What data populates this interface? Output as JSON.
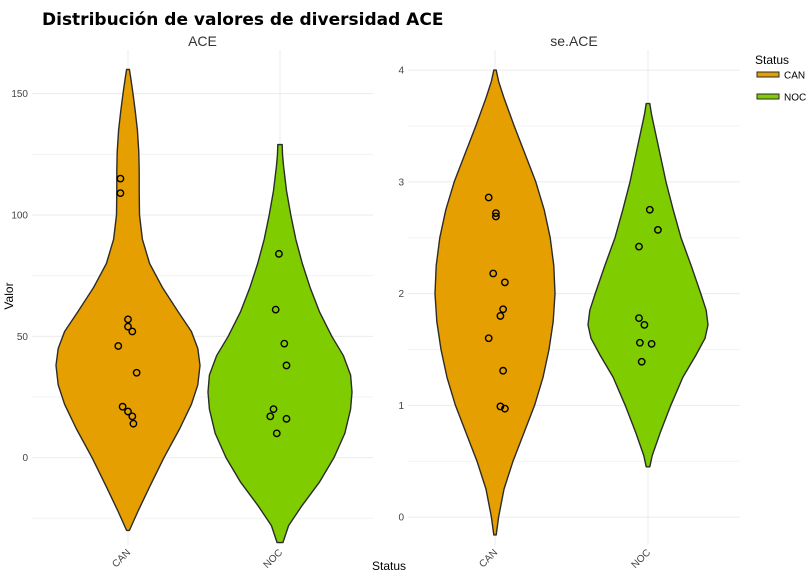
{
  "chart_data": {
    "type": "violin",
    "title": "Distribución de valores de diversidad ACE",
    "xlabel": "Status",
    "ylabel": "Valor",
    "legend": {
      "title": "Status",
      "placement": "right",
      "entries": [
        {
          "label": "CAN",
          "color": "#E69F00"
        },
        {
          "label": "NOC",
          "color": "#7FCD00"
        }
      ]
    },
    "categories": [
      "CAN",
      "NOC"
    ],
    "facets": [
      {
        "title": "ACE",
        "ylim": [
          -36,
          168
        ],
        "yticks": [
          0,
          50,
          100,
          150
        ],
        "violins": [
          {
            "category": "CAN",
            "ymin": -30,
            "ymax": 160,
            "profile": [
              [
                -30,
                0.02
              ],
              [
                -22,
                0.14
              ],
              [
                -12,
                0.3
              ],
              [
                0,
                0.5
              ],
              [
                12,
                0.72
              ],
              [
                22,
                0.88
              ],
              [
                30,
                0.97
              ],
              [
                38,
                1.0
              ],
              [
                45,
                0.97
              ],
              [
                52,
                0.88
              ],
              [
                60,
                0.7
              ],
              [
                70,
                0.48
              ],
              [
                80,
                0.3
              ],
              [
                90,
                0.2
              ],
              [
                100,
                0.16
              ],
              [
                110,
                0.155
              ],
              [
                118,
                0.155
              ],
              [
                126,
                0.15
              ],
              [
                135,
                0.13
              ],
              [
                143,
                0.1
              ],
              [
                150,
                0.07
              ],
              [
                156,
                0.04
              ],
              [
                160,
                0.02
              ]
            ],
            "points": [
              [
                -0.07,
                115
              ],
              [
                -0.07,
                109
              ],
              [
                0.0,
                57
              ],
              [
                0.0,
                54
              ],
              [
                0.04,
                52
              ],
              [
                -0.09,
                46
              ],
              [
                0.08,
                35
              ],
              [
                -0.05,
                21
              ],
              [
                0.0,
                19
              ],
              [
                0.04,
                17
              ],
              [
                0.05,
                14
              ]
            ]
          },
          {
            "category": "NOC",
            "ymin": -35,
            "ymax": 129,
            "profile": [
              [
                -35,
                0.04
              ],
              [
                -28,
                0.12
              ],
              [
                -20,
                0.3
              ],
              [
                -10,
                0.55
              ],
              [
                0,
                0.75
              ],
              [
                10,
                0.9
              ],
              [
                20,
                0.98
              ],
              [
                27,
                1.0
              ],
              [
                34,
                0.98
              ],
              [
                42,
                0.88
              ],
              [
                50,
                0.72
              ],
              [
                60,
                0.55
              ],
              [
                70,
                0.42
              ],
              [
                80,
                0.31
              ],
              [
                90,
                0.22
              ],
              [
                100,
                0.15
              ],
              [
                110,
                0.09
              ],
              [
                120,
                0.05
              ],
              [
                125,
                0.035
              ],
              [
                129,
                0.03
              ]
            ],
            "points": [
              [
                -0.01,
                84
              ],
              [
                -0.04,
                61
              ],
              [
                0.04,
                47
              ],
              [
                0.06,
                38
              ],
              [
                -0.06,
                20
              ],
              [
                -0.09,
                17
              ],
              [
                0.06,
                16
              ],
              [
                -0.03,
                10
              ]
            ]
          }
        ]
      },
      {
        "title": "se.ACE",
        "ylim": [
          -0.25,
          4.18
        ],
        "yticks": [
          0,
          1,
          2,
          3,
          4
        ],
        "violins": [
          {
            "category": "CAN",
            "ymin": -0.16,
            "ymax": 4.0,
            "profile": [
              [
                -0.16,
                0.02
              ],
              [
                0.0,
                0.06
              ],
              [
                0.25,
                0.15
              ],
              [
                0.5,
                0.3
              ],
              [
                0.75,
                0.48
              ],
              [
                1.0,
                0.66
              ],
              [
                1.25,
                0.8
              ],
              [
                1.5,
                0.9
              ],
              [
                1.75,
                0.97
              ],
              [
                2.0,
                1.0
              ],
              [
                2.25,
                0.98
              ],
              [
                2.5,
                0.92
              ],
              [
                2.75,
                0.82
              ],
              [
                3.0,
                0.68
              ],
              [
                3.25,
                0.5
              ],
              [
                3.5,
                0.32
              ],
              [
                3.75,
                0.15
              ],
              [
                3.9,
                0.06
              ],
              [
                4.0,
                0.02
              ]
            ],
            "points": [
              [
                -0.07,
                2.86
              ],
              [
                0.01,
                2.72
              ],
              [
                0.01,
                2.69
              ],
              [
                -0.02,
                2.18
              ],
              [
                0.11,
                2.1
              ],
              [
                0.09,
                1.86
              ],
              [
                0.06,
                1.8
              ],
              [
                -0.07,
                1.6
              ],
              [
                0.09,
                1.31
              ],
              [
                0.06,
                0.99
              ],
              [
                0.11,
                0.97
              ]
            ]
          },
          {
            "category": "NOC",
            "ymin": 0.45,
            "ymax": 3.7,
            "profile": [
              [
                0.45,
                0.03
              ],
              [
                0.55,
                0.07
              ],
              [
                0.75,
                0.2
              ],
              [
                1.0,
                0.38
              ],
              [
                1.25,
                0.58
              ],
              [
                1.45,
                0.8
              ],
              [
                1.6,
                0.95
              ],
              [
                1.72,
                1.0
              ],
              [
                1.85,
                0.97
              ],
              [
                2.0,
                0.88
              ],
              [
                2.25,
                0.72
              ],
              [
                2.5,
                0.55
              ],
              [
                2.75,
                0.42
              ],
              [
                3.0,
                0.3
              ],
              [
                3.25,
                0.2
              ],
              [
                3.5,
                0.1
              ],
              [
                3.6,
                0.06
              ],
              [
                3.7,
                0.03
              ]
            ],
            "points": [
              [
                0.02,
                2.75
              ],
              [
                0.11,
                2.57
              ],
              [
                -0.1,
                2.42
              ],
              [
                -0.1,
                1.78
              ],
              [
                -0.04,
                1.72
              ],
              [
                -0.09,
                1.56
              ],
              [
                0.04,
                1.55
              ],
              [
                -0.07,
                1.39
              ]
            ]
          }
        ]
      }
    ]
  }
}
